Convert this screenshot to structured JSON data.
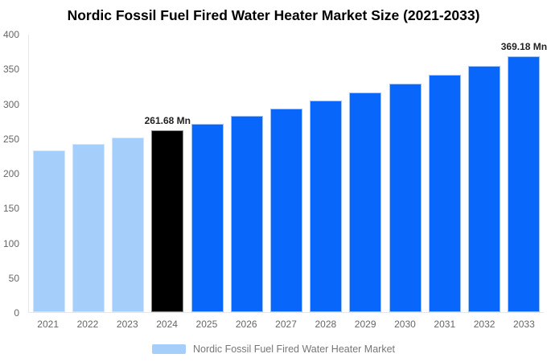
{
  "colors": {
    "background": "#ffffff",
    "title_text": "#000000",
    "axis_label": "#666666",
    "value_label": "#222222",
    "axis_line": "#e7e7e7",
    "legend_text": "#777777",
    "historical_bar": "#A6CEFB",
    "current_bar": "#000000",
    "forecast_bar": "#0866FA"
  },
  "chart_data": {
    "type": "bar",
    "title": "Nordic Fossil Fuel Fired Water Heater Market Size (2021-2033)",
    "categories": [
      "2021",
      "2022",
      "2023",
      "2024",
      "2025",
      "2026",
      "2027",
      "2028",
      "2029",
      "2030",
      "2031",
      "2032",
      "2033"
    ],
    "values": [
      233.3,
      242.4,
      251.9,
      261.68,
      271.9,
      282.5,
      293.5,
      304.9,
      316.8,
      329.2,
      342.0,
      355.3,
      369.18
    ],
    "bar_colors": [
      "#A6CEFB",
      "#A6CEFB",
      "#A6CEFB",
      "#000000",
      "#0866FA",
      "#0866FA",
      "#0866FA",
      "#0866FA",
      "#0866FA",
      "#0866FA",
      "#0866FA",
      "#0866FA",
      "#0866FA"
    ],
    "bar_strokes": [
      "#CFE5FD",
      "#CFE5FD",
      "#CFE5FD",
      "#8A8A8A",
      "#9CC3F6",
      "#9CC3F6",
      "#9CC3F6",
      "#9CC3F6",
      "#9CC3F6",
      "#9CC3F6",
      "#9CC3F6",
      "#9CC3F6",
      "#9CC3F6"
    ],
    "annotations": [
      {
        "index": 3,
        "text": "261.68 Mn"
      },
      {
        "index": 12,
        "text": "369.18 Mn"
      }
    ],
    "ylim": [
      0,
      400
    ],
    "y_ticks": [
      "400",
      "350",
      "300",
      "250",
      "200",
      "150",
      "100",
      "50",
      "0"
    ],
    "grid": false,
    "legend": {
      "position": "bottom",
      "label": "Nordic Fossil Fuel Fired Water Heater Market",
      "swatch_color": "#A6CEFB"
    }
  }
}
